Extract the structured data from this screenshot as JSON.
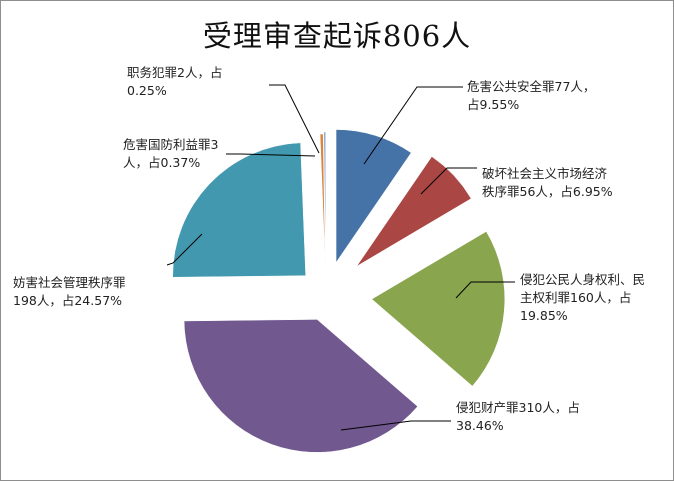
{
  "chart_data": {
    "type": "pie",
    "title": "受理审查起诉806人",
    "unit": "人",
    "total": 806,
    "slices": [
      {
        "name": "危害公共安全罪",
        "value": 77,
        "percent": 9.55,
        "label": "危害公共安全罪77人，\n占9.55%",
        "color": "#4572a7"
      },
      {
        "name": "破坏社会主义市场经济秩序罪",
        "value": 56,
        "percent": 6.95,
        "label": "破坏社会主义市场经济\n秩序罪56人，占6.95%",
        "color": "#aa4643"
      },
      {
        "name": "侵犯公民人身权利、民主权利罪",
        "value": 160,
        "percent": 19.85,
        "label": "侵犯公民人身权利、民\n主权利罪160人，占\n19.85%",
        "color": "#89a54e"
      },
      {
        "name": "侵犯财产罪",
        "value": 310,
        "percent": 38.46,
        "label": "侵犯财产罪310人，占\n38.46%",
        "color": "#71588f"
      },
      {
        "name": "妨害社会管理秩序罪",
        "value": 198,
        "percent": 24.57,
        "label": "妨害社会管理秩序罪\n198人，占24.57%",
        "color": "#4198af"
      },
      {
        "name": "危害国防利益罪",
        "value": 3,
        "percent": 0.37,
        "label": "危害国防利益罪3\n人，占0.37%",
        "color": "#db843d"
      },
      {
        "name": "职务犯罪",
        "value": 2,
        "percent": 0.25,
        "label": "职务犯罪2人，占\n0.25%",
        "color": "#93a9cf"
      }
    ]
  }
}
